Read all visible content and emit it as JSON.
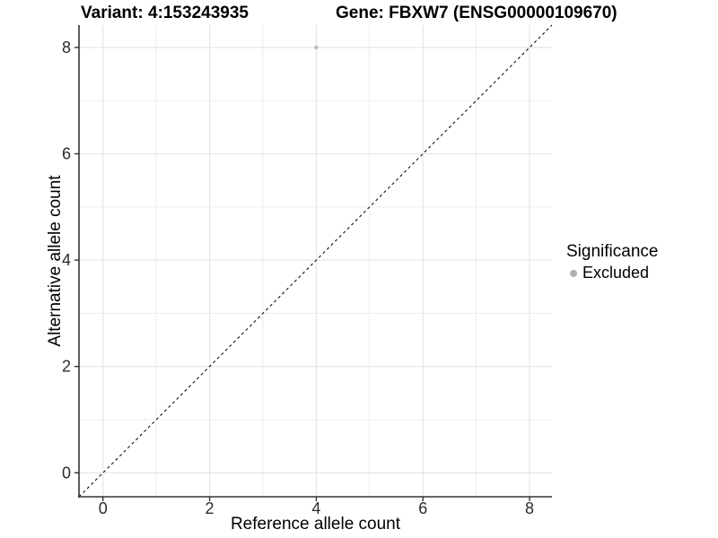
{
  "header": {
    "title_left": "Variant: 4:153243935",
    "title_right": "Gene: FBXW7 (ENSG00000109670)"
  },
  "chart_data": {
    "type": "scatter",
    "xlabel": "Reference allele count",
    "ylabel": "Alternative allele count",
    "xlim": [
      -0.45,
      8.42
    ],
    "ylim": [
      -0.45,
      8.42
    ],
    "x_ticks": [
      0,
      2,
      4,
      6,
      8
    ],
    "y_ticks": [
      0,
      2,
      4,
      6,
      8
    ],
    "x_minor_ticks": [
      1,
      3,
      5,
      7
    ],
    "y_minor_ticks": [
      1,
      3,
      5,
      7
    ],
    "grid": "on",
    "reference_line": {
      "type": "identity",
      "slope": 1,
      "intercept": 0,
      "style": "dashed",
      "color": "#111111"
    },
    "series": [
      {
        "name": "Excluded",
        "color": "#bdbdbd",
        "points": [
          [
            4,
            8
          ]
        ]
      }
    ],
    "legend": {
      "title": "Significance",
      "position": "right",
      "entries": [
        {
          "label": "Excluded",
          "color": "#b0b0b0"
        }
      ]
    }
  },
  "colors": {
    "grid_major": "#e3e3e3",
    "grid_minor": "#ededed",
    "axis_line": "#333333",
    "tick_mark": "#333333",
    "tick_label": "#2b2b2b"
  }
}
